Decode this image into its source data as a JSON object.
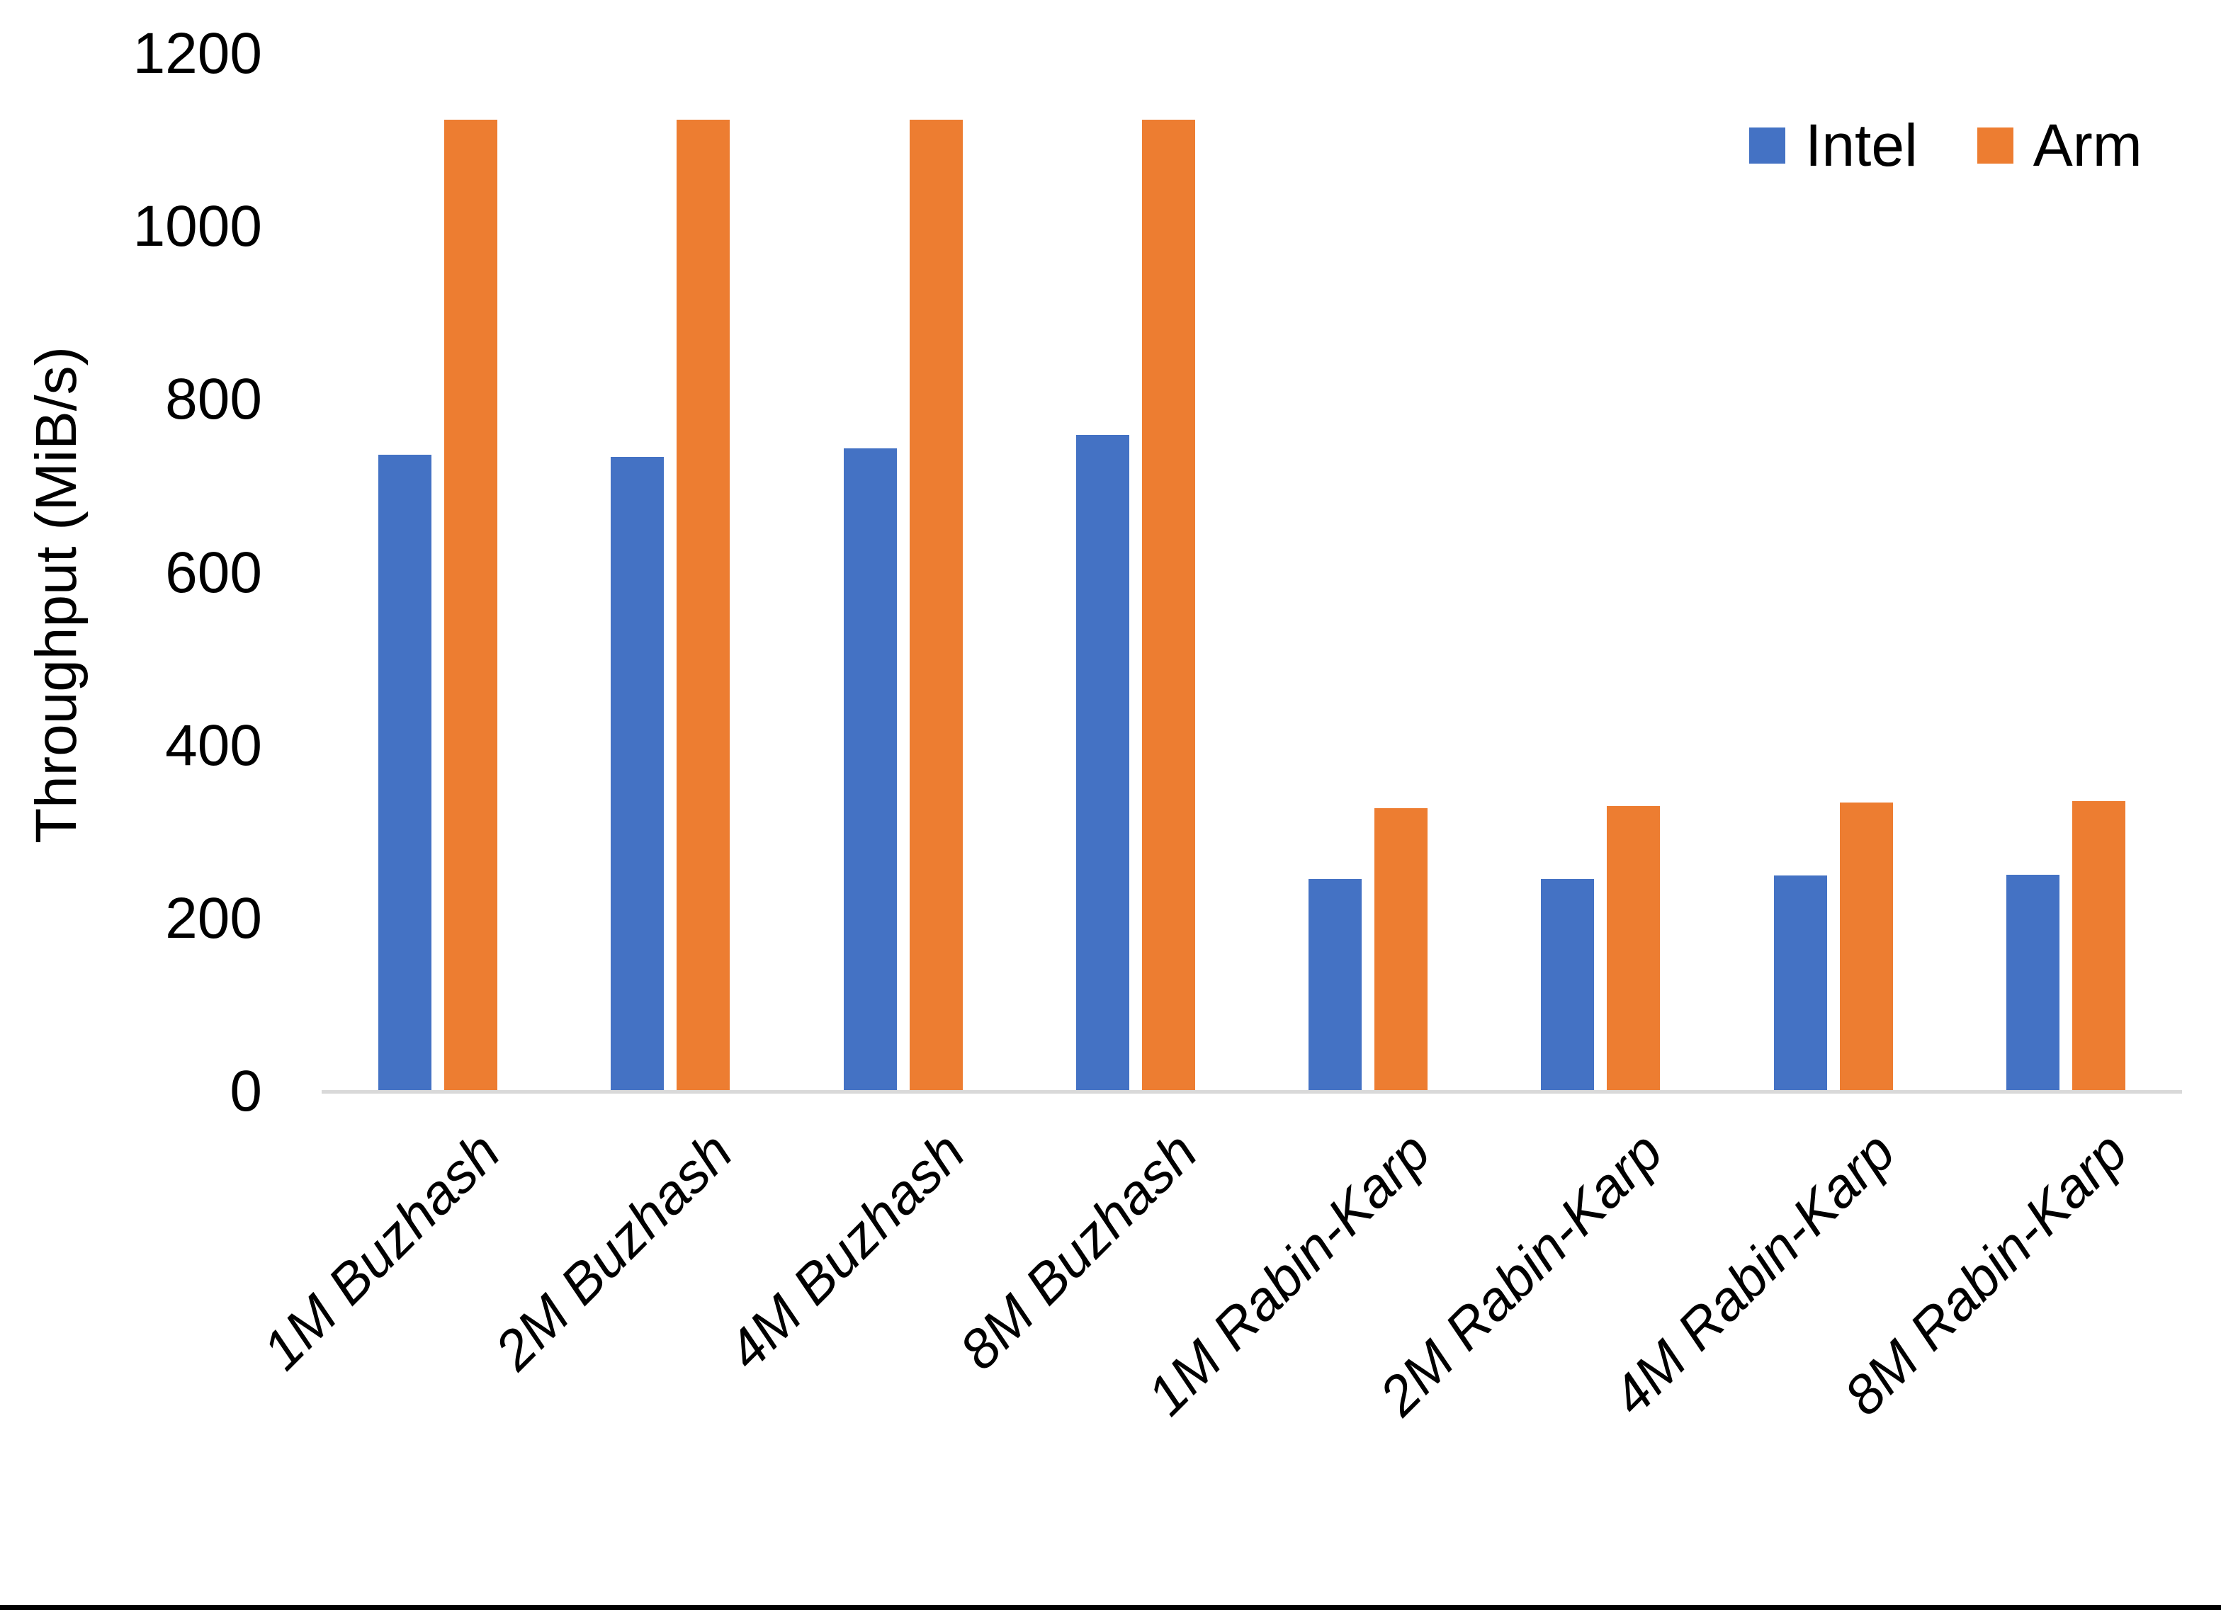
{
  "chart_data": {
    "type": "bar",
    "title": "",
    "xlabel": "",
    "ylabel": "Throughput (MiB/s)",
    "ylim": [
      0,
      1200
    ],
    "yticks": [
      0,
      200,
      400,
      600,
      800,
      1000,
      1200
    ],
    "grid": false,
    "legend_position": "top-right",
    "categories": [
      "1M Buzhash",
      "2M Buzhash",
      "4M Buzhash",
      "8M Buzhash",
      "1M Rabin-Karp",
      "2M Rabin-Karp",
      "4M Rabin-Karp",
      "8M Rabin-Karp"
    ],
    "series": [
      {
        "name": "Intel",
        "color": "#4472C4",
        "values": [
          736,
          734,
          744,
          759,
          246,
          246,
          250,
          251
        ]
      },
      {
        "name": "Arm",
        "color": "#ED7D31",
        "values": [
          1124,
          1124,
          1124,
          1124,
          328,
          330,
          334,
          336
        ]
      }
    ]
  },
  "colors": {
    "background": "#FFFFFF",
    "axis_line": "#D9D9D9",
    "text": "#000000",
    "bottom_bar": "#000000"
  }
}
